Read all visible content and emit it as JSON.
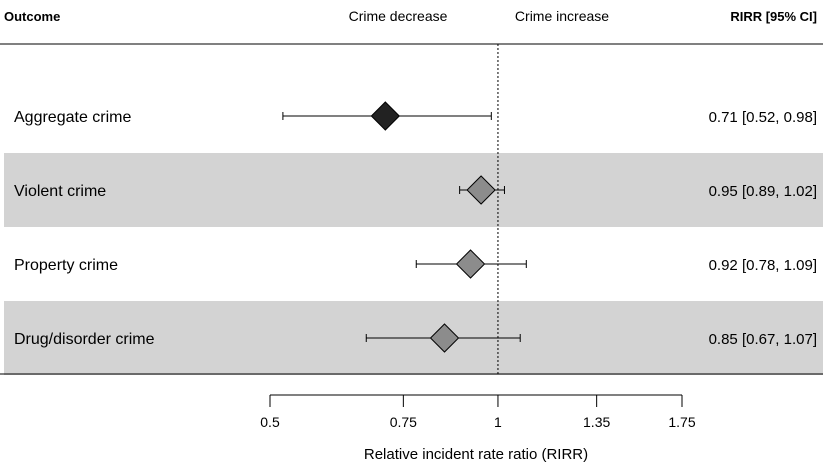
{
  "header": {
    "outcome": "Outcome",
    "left_direction": "Crime decrease",
    "right_direction": "Crime increase",
    "estimate_col": "RIRR [95% CI]"
  },
  "chart_data": {
    "type": "forest",
    "xscale": "log",
    "reference_line": 1,
    "xlabel": "Relative incident rate ratio (RIRR)",
    "xticks": [
      0.5,
      0.75,
      1,
      1.35,
      1.75
    ],
    "xtick_labels": [
      "0.5",
      "0.75",
      "1",
      "1.35",
      "1.75"
    ],
    "xlim": [
      0.5,
      1.75
    ],
    "colors": {
      "aggregate": "#222222",
      "component": "#8c8c8c",
      "shaded_row": "#d3d3d3"
    },
    "rows": [
      {
        "label": "Aggregate crime",
        "estimate": 0.71,
        "lower": 0.52,
        "upper": 0.98,
        "text": "0.71 [0.52, 0.98]",
        "style": "aggregate",
        "shaded": false
      },
      {
        "label": "Violent crime",
        "estimate": 0.95,
        "lower": 0.89,
        "upper": 1.02,
        "text": "0.95 [0.89, 1.02]",
        "style": "component",
        "shaded": true
      },
      {
        "label": "Property crime",
        "estimate": 0.92,
        "lower": 0.78,
        "upper": 1.09,
        "text": "0.92 [0.78, 1.09]",
        "style": "component",
        "shaded": false
      },
      {
        "label": "Drug/disorder crime",
        "estimate": 0.85,
        "lower": 0.67,
        "upper": 1.07,
        "text": "0.85 [0.67, 1.07]",
        "style": "component",
        "shaded": true
      }
    ]
  }
}
